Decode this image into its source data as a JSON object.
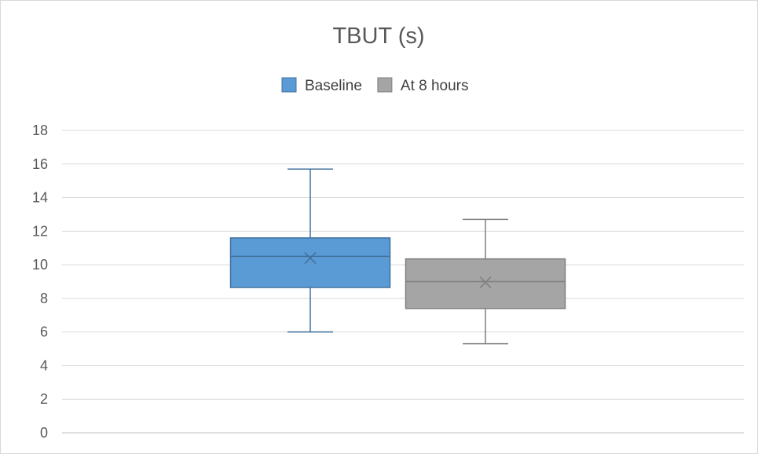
{
  "chart_data": {
    "type": "box",
    "title": "TBUT (s)",
    "xlabel": "",
    "ylabel": "",
    "ylim": [
      0,
      18
    ],
    "y_ticks": [
      0,
      2,
      4,
      6,
      8,
      10,
      12,
      14,
      16,
      18
    ],
    "grid": true,
    "legend_position": "top",
    "series": [
      {
        "name": "Baseline",
        "color": "#5b9bd5",
        "edge_color": "#41719c",
        "min": 6.0,
        "q1": 8.65,
        "median": 10.5,
        "q3": 11.6,
        "max": 15.7,
        "mean": 10.4
      },
      {
        "name": "At 8 hours",
        "color": "#a5a5a5",
        "edge_color": "#7f7f7f",
        "min": 5.3,
        "q1": 7.4,
        "median": 9.0,
        "q3": 10.35,
        "max": 12.7,
        "mean": 8.95
      }
    ]
  }
}
